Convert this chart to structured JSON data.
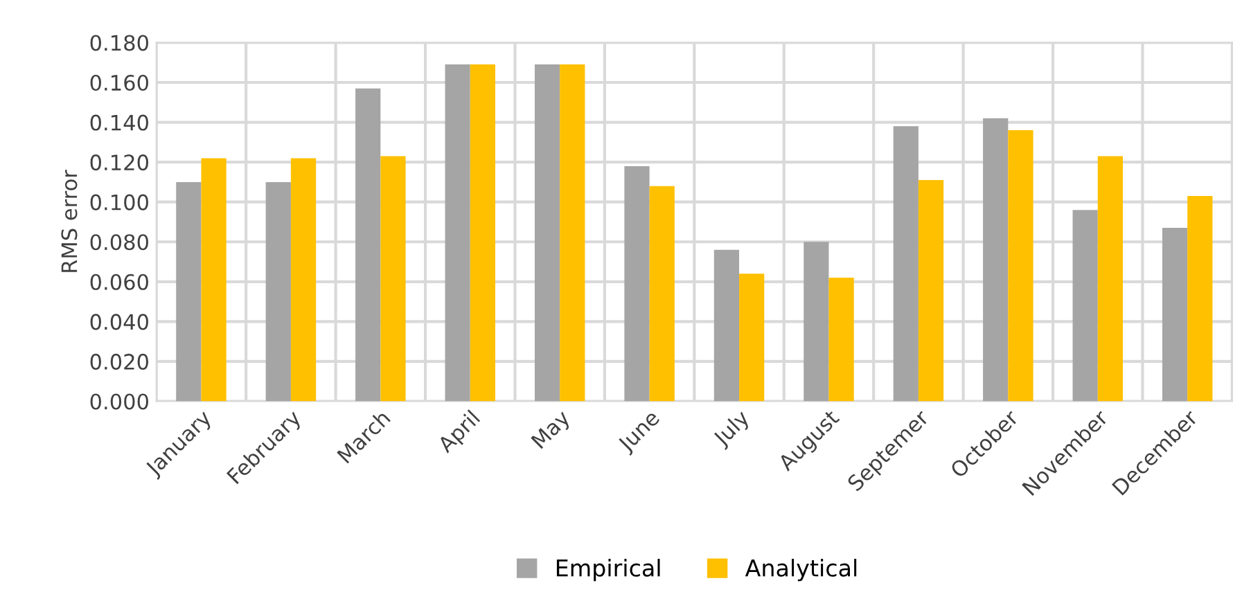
{
  "chart_data": {
    "type": "bar",
    "ylabel": "RMS error",
    "categories": [
      "January",
      "February",
      "March",
      "April",
      "May",
      "June",
      "July",
      "August",
      "Septemer",
      "October",
      "November",
      "December"
    ],
    "series": [
      {
        "name": "Empirical",
        "color": "#a5a5a5",
        "values": [
          0.11,
          0.11,
          0.157,
          0.169,
          0.169,
          0.118,
          0.076,
          0.08,
          0.138,
          0.142,
          0.096,
          0.087
        ]
      },
      {
        "name": "Analytical",
        "color": "#ffc000",
        "values": [
          0.122,
          0.122,
          0.123,
          0.169,
          0.169,
          0.108,
          0.064,
          0.062,
          0.111,
          0.136,
          0.123,
          0.103
        ]
      }
    ],
    "ylim": [
      0,
      0.18
    ],
    "yticks": [
      {
        "value": 0,
        "label": "0.000"
      },
      {
        "value": 0.02,
        "label": "0.020"
      },
      {
        "value": 0.04,
        "label": "0.040"
      },
      {
        "value": 0.06,
        "label": "0.060"
      },
      {
        "value": 0.08,
        "label": "0.080"
      },
      {
        "value": 0.1,
        "label": "0.100"
      },
      {
        "value": 0.12,
        "label": "0.120"
      },
      {
        "value": 0.14,
        "label": "0.140"
      },
      {
        "value": 0.16,
        "label": "0.160"
      },
      {
        "value": 0.18,
        "label": "0.180"
      }
    ],
    "grid": true,
    "legend": "bottom"
  }
}
